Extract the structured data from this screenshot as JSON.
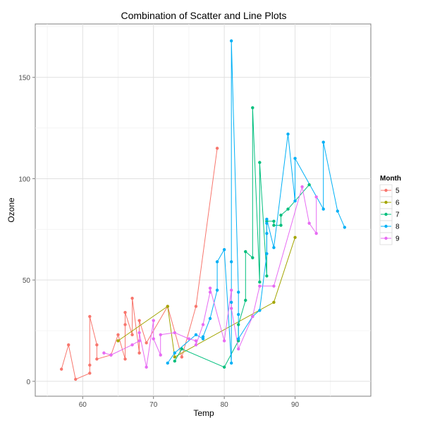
{
  "chart_data": {
    "type": "line",
    "title": "Combination of Scatter and Line Plots",
    "xlabel": "Temp",
    "ylabel": "Ozone",
    "xlim": [
      53.3,
      100.7
    ],
    "ylim": [
      -7.35,
      176.35
    ],
    "x_ticks": [
      60,
      70,
      80,
      90
    ],
    "y_ticks": [
      0,
      50,
      100,
      150
    ],
    "grid": true,
    "legend_title": "Month",
    "legend_position": "right",
    "series": [
      {
        "name": "5",
        "color": "#F8766D",
        "points": [
          [
            67,
            41
          ],
          [
            72,
            36
          ],
          [
            74,
            12
          ],
          [
            62,
            18
          ],
          [
            65,
            28
          ],
          [
            59,
            23
          ],
          [
            61,
            19
          ],
          [
            69,
            8
          ],
          [
            66,
            7
          ],
          [
            68,
            16
          ],
          [
            58,
            11
          ],
          [
            64,
            14
          ],
          [
            66,
            18
          ],
          [
            57,
            14
          ],
          [
            68,
            34
          ],
          [
            62,
            6
          ],
          [
            59,
            30
          ],
          [
            73,
            11
          ],
          [
            61,
            1
          ],
          [
            61,
            11
          ],
          [
            57,
            4
          ],
          [
            58,
            32
          ],
          [
            57,
            23
          ],
          [
            67,
            45
          ],
          [
            81,
            115
          ],
          [
            79,
            37
          ]
        ],
        "xs": [
          57,
          58,
          59,
          61,
          61,
          61,
          62,
          62,
          64,
          65,
          66,
          66,
          66,
          67,
          67,
          68,
          68,
          69,
          72,
          74,
          76,
          79
        ],
        "ys": [
          6,
          18,
          1,
          4,
          8,
          32,
          18,
          11,
          13,
          23,
          11,
          28,
          34,
          23,
          41,
          14,
          30,
          19,
          37,
          12,
          37,
          115
        ]
      },
      {
        "name": "6",
        "color": "#A3A500",
        "xs": [
          65,
          72,
          73,
          87,
          90
        ],
        "ys": [
          20,
          37,
          12,
          39,
          71
        ]
      },
      {
        "name": "7",
        "color": "#00BF7D",
        "xs": [
          73,
          74,
          80,
          82,
          82,
          83,
          83,
          84,
          84,
          85,
          85,
          86,
          86,
          87,
          87,
          88,
          88,
          89,
          92
        ],
        "ys": [
          10,
          16,
          7,
          20,
          28,
          40,
          64,
          61,
          135,
          49,
          108,
          52,
          79,
          79,
          77,
          77,
          82,
          85,
          97
        ]
      },
      {
        "name": "8",
        "color": "#00B0F6",
        "xs": [
          72,
          73,
          76,
          77,
          77,
          78,
          79,
          79,
          80,
          81,
          81,
          81,
          81,
          82,
          82,
          82,
          84,
          85,
          86,
          86,
          86,
          86,
          87,
          89,
          90,
          90,
          94,
          94,
          96,
          97
        ],
        "ys": [
          9,
          14,
          23,
          21,
          22,
          31,
          45,
          59,
          65,
          9,
          39,
          59,
          168,
          44,
          33,
          21,
          32,
          35,
          63,
          73,
          78,
          80,
          66,
          122,
          89,
          110,
          85,
          118,
          84,
          76
        ]
      },
      {
        "name": "9",
        "color": "#E76BF3",
        "xs": [
          63,
          64,
          67,
          68,
          68,
          69,
          70,
          70,
          71,
          71,
          73,
          75,
          76,
          76,
          77,
          78,
          78,
          80,
          81,
          81,
          82,
          84,
          85,
          87,
          91,
          92,
          93,
          93
        ],
        "ys": [
          14,
          13,
          18,
          20,
          24,
          7,
          30,
          21,
          13,
          23,
          24,
          21,
          20,
          18,
          28,
          44,
          46,
          20,
          45,
          36,
          16,
          32,
          47,
          47,
          96,
          78,
          73,
          91
        ]
      }
    ]
  }
}
